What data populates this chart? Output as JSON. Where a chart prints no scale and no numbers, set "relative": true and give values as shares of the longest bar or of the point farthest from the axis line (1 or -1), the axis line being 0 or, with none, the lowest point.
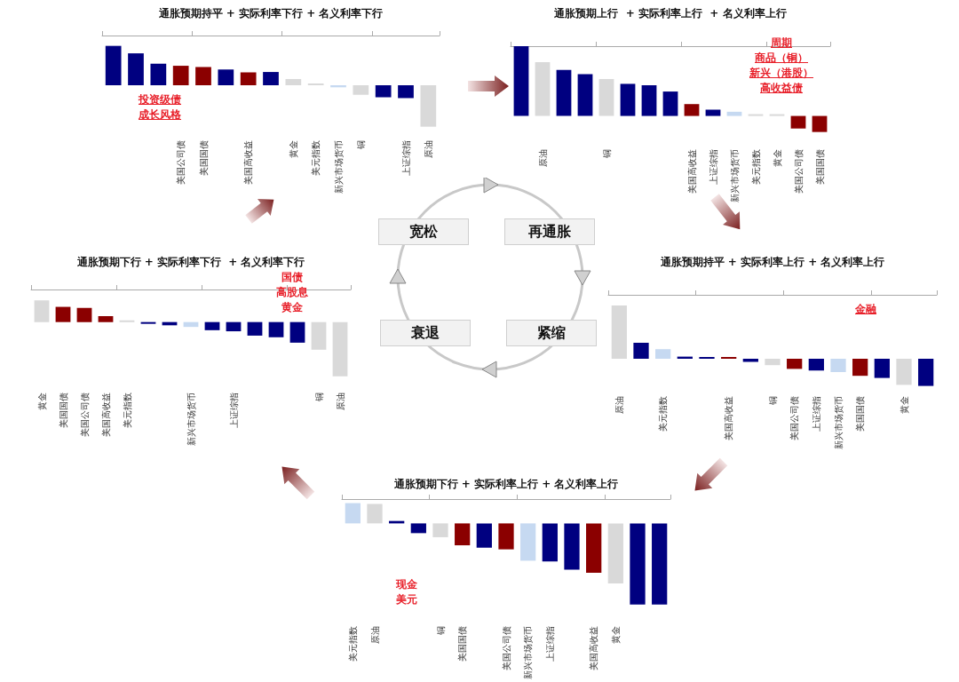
{
  "chart_data": [
    {
      "type": "bar",
      "relative": true,
      "title": "通胀预期持平 + 实际利率下行 + 名义利率下行",
      "categories": [
        null,
        null,
        null,
        "美国公司债",
        "美国国债",
        null,
        "美国高收益",
        null,
        "黄金",
        "美元指数",
        "新兴市场货币",
        "铜",
        null,
        "上证综指",
        "原油"
      ],
      "values": [
        0.95,
        0.77,
        0.52,
        0.47,
        0.44,
        0.38,
        0.31,
        0.32,
        0.15,
        0,
        -0.05,
        -0.23,
        -0.29,
        -0.31,
        -1
      ],
      "colors": [
        "#000080",
        "#000080",
        "#000080",
        "#8b0000",
        "#8b0000",
        "#000080",
        "#8b0000",
        "#000080",
        "#d9d9d9",
        "#d9d9d9",
        "#c6d9f1",
        "#d9d9d9",
        "#000080",
        "#000080",
        "#d9d9d9"
      ],
      "annotations": [
        "投资级债",
        "成长风格"
      ]
    },
    {
      "type": "bar",
      "relative": true,
      "title": "通胀预期上行  + 实际利率上行  + 名义利率上行",
      "categories": [
        null,
        "原油",
        null,
        null,
        "铜",
        null,
        null,
        null,
        "美国高收益",
        "上证综指",
        "新兴市场货币",
        "美元指数",
        "黄金",
        "美国公司债",
        "美国国债"
      ],
      "values": [
        1,
        0.77,
        0.66,
        0.6,
        0.53,
        0.46,
        0.44,
        0.35,
        0.17,
        0.09,
        0.06,
        0.02,
        0.01,
        -0.18,
        -0.23
      ],
      "colors": [
        "#000080",
        "#d9d9d9",
        "#000080",
        "#000080",
        "#d9d9d9",
        "#000080",
        "#000080",
        "#000080",
        "#8b0000",
        "#000080",
        "#c6d9f1",
        "#d9d9d9",
        "#d9d9d9",
        "#8b0000",
        "#8b0000"
      ],
      "annotations": [
        "周期",
        "商品（铜）",
        "新兴（港股）",
        "高收益债"
      ]
    },
    {
      "type": "bar",
      "relative": true,
      "title": "通胀预期下行 + 实际利率下行  + 名义利率下行",
      "categories": [
        "黄金",
        "美国国债",
        "美国公司债",
        "美国高收益",
        "美元指数",
        null,
        null,
        "新兴市场货币",
        null,
        "上证综指",
        null,
        null,
        null,
        "铜",
        "原油"
      ],
      "values": [
        0.4,
        0.28,
        0.26,
        0.11,
        0,
        -0.01,
        -0.06,
        -0.09,
        -0.15,
        -0.17,
        -0.25,
        -0.28,
        -0.38,
        -0.51,
        -1
      ],
      "colors": [
        "#d9d9d9",
        "#8b0000",
        "#8b0000",
        "#8b0000",
        "#d9d9d9",
        "#000080",
        "#000080",
        "#c6d9f1",
        "#000080",
        "#000080",
        "#000080",
        "#000080",
        "#000080",
        "#d9d9d9",
        "#d9d9d9"
      ],
      "annotations": [
        "国债",
        "高股息",
        "黄金"
      ]
    },
    {
      "type": "bar",
      "relative": true,
      "title": "通胀预期持平 + 实际利率上行 + 名义利率上行",
      "categories": [
        "原油",
        null,
        "美元指数",
        null,
        null,
        "美国高收益",
        null,
        "铜",
        "美国公司债",
        "上证综指",
        "新兴市场货币",
        "美国国债",
        null,
        "黄金",
        null
      ],
      "values": [
        1,
        0.3,
        0.18,
        0.04,
        0.03,
        0.01,
        -0.06,
        -0.12,
        -0.19,
        -0.22,
        -0.25,
        -0.32,
        -0.36,
        -0.49,
        -0.51
      ],
      "colors": [
        "#d9d9d9",
        "#000080",
        "#c6d9f1",
        "#000080",
        "#000080",
        "#8b0000",
        "#000080",
        "#d9d9d9",
        "#8b0000",
        "#000080",
        "#c6d9f1",
        "#8b0000",
        "#000080",
        "#d9d9d9",
        "#000080"
      ],
      "annotations": [
        "金融"
      ]
    },
    {
      "type": "bar",
      "relative": true,
      "title": "通胀预期下行 + 实际利率上行 + 名义利率上行",
      "categories": [
        "美元指数",
        "原油",
        null,
        null,
        "铜",
        "美国国债",
        null,
        "美国公司债",
        "新兴市场货币",
        "上证综指",
        null,
        "美国高收益",
        "黄金",
        null,
        null
      ],
      "values": [
        0.25,
        0.24,
        0.03,
        -0.12,
        -0.17,
        -0.27,
        -0.3,
        -0.32,
        -0.46,
        -0.47,
        -0.57,
        -0.61,
        -0.74,
        -1,
        -1
      ],
      "colors": [
        "#c6d9f1",
        "#d9d9d9",
        "#000080",
        "#000080",
        "#d9d9d9",
        "#8b0000",
        "#000080",
        "#8b0000",
        "#c6d9f1",
        "#000080",
        "#000080",
        "#8b0000",
        "#d9d9d9",
        "#000080",
        "#000080"
      ],
      "annotations": [
        "现金",
        "美元"
      ]
    },
    {
      "type": "other",
      "annotations": [
        "宽松",
        "再通胀",
        "衰退",
        "紧缩"
      ]
    }
  ]
}
